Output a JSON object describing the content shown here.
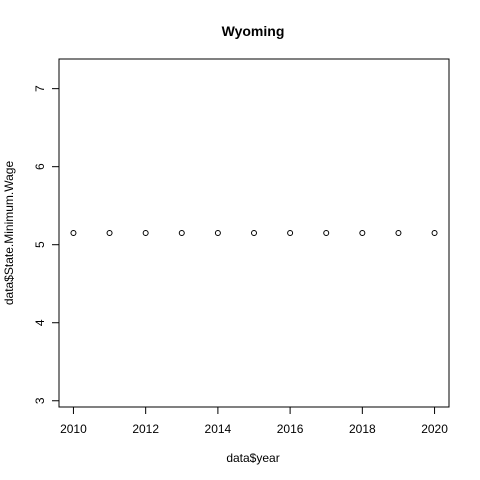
{
  "chart_data": {
    "type": "scatter",
    "title": "Wyoming",
    "xlabel": "data$year",
    "ylabel": "data$State.Minimum.Wage",
    "xlim": [
      2009.6,
      2020.4
    ],
    "ylim": [
      2.92,
      7.38
    ],
    "x_ticks": [
      2010,
      2012,
      2014,
      2016,
      2018,
      2020
    ],
    "y_ticks": [
      3,
      4,
      5,
      6,
      7
    ],
    "grid": false,
    "series": [
      {
        "x": [
          2010,
          2011,
          2012,
          2013,
          2014,
          2015,
          2016,
          2017,
          2018,
          2019,
          2020
        ],
        "y": [
          5.15,
          5.15,
          5.15,
          5.15,
          5.15,
          5.15,
          5.15,
          5.15,
          5.15,
          5.15,
          5.15
        ]
      }
    ]
  }
}
